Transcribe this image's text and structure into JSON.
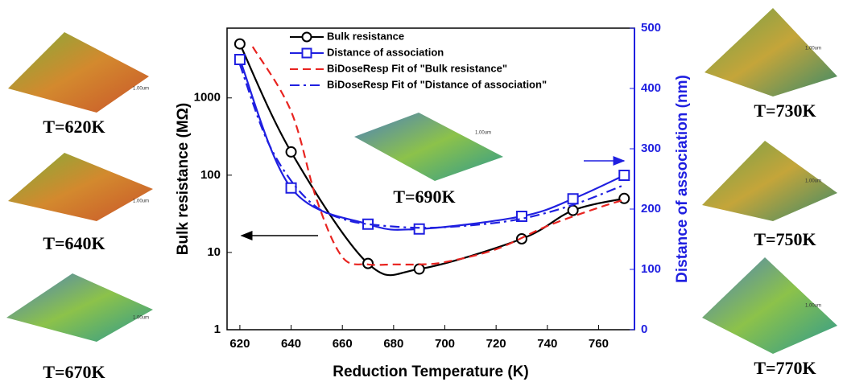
{
  "chart_data": {
    "type": "line",
    "xlabel": "Reduction Temperature (K)",
    "ylabel": "Bulk resistance (MΩ)",
    "y2label": "Distance of association (nm)",
    "xlim": [
      615,
      774
    ],
    "xticks": [
      620,
      640,
      660,
      680,
      700,
      720,
      740,
      760
    ],
    "ylim": [
      1,
      8000
    ],
    "yticks": [
      1,
      10,
      100,
      1000
    ],
    "ylog": true,
    "y2lim": [
      0,
      500
    ],
    "y2ticks": [
      0,
      100,
      200,
      300,
      400,
      500
    ],
    "legend": "top",
    "series": [
      {
        "name": "Bulk resistance",
        "color": "#000000",
        "marker": "circle",
        "dash": "solid",
        "x": [
          620,
          640,
          670,
          690,
          730,
          750,
          770
        ],
        "values": [
          5000,
          200,
          7.2,
          6.1,
          15,
          35,
          50
        ]
      },
      {
        "name": "Distance of association",
        "color": "#1f1fe0",
        "marker": "square",
        "dash": "solid",
        "axis": "y2",
        "x": [
          620,
          640,
          670,
          690,
          730,
          750,
          770
        ],
        "values": [
          448,
          235,
          175,
          167,
          188,
          217,
          256
        ]
      },
      {
        "name": "BiDoseResp Fit of \"Bulk resistance\"",
        "color": "#e8231f",
        "dash": "dashed",
        "x": [
          625,
          640,
          650,
          660,
          670,
          680,
          690,
          700,
          720,
          740,
          760,
          770
        ],
        "values": [
          4600,
          670,
          48,
          8.7,
          7,
          7,
          7,
          7.5,
          11,
          22,
          38,
          48
        ]
      },
      {
        "name": "BiDoseResp Fit of \"Distance of association\"",
        "color": "#1f1fe0",
        "dash": "dashdot",
        "axis": "y2",
        "x": [
          620,
          630,
          640,
          650,
          660,
          670,
          690,
          710,
          730,
          750,
          770
        ],
        "values": [
          440,
          320,
          247,
          203,
          184,
          175,
          169,
          173,
          184,
          207,
          240
        ]
      }
    ]
  },
  "insets": [
    {
      "label": "T=620K",
      "scale": "1.00um"
    },
    {
      "label": "T=640K",
      "scale": "1.00um"
    },
    {
      "label": "T=670K",
      "scale": "1.00um"
    },
    {
      "label": "T=690K",
      "scale": "1.00um"
    },
    {
      "label": "T=730K",
      "scale": "1.00um"
    },
    {
      "label": "T=750K",
      "scale": "1.00um"
    },
    {
      "label": "T=770K",
      "scale": "1.00um"
    }
  ]
}
